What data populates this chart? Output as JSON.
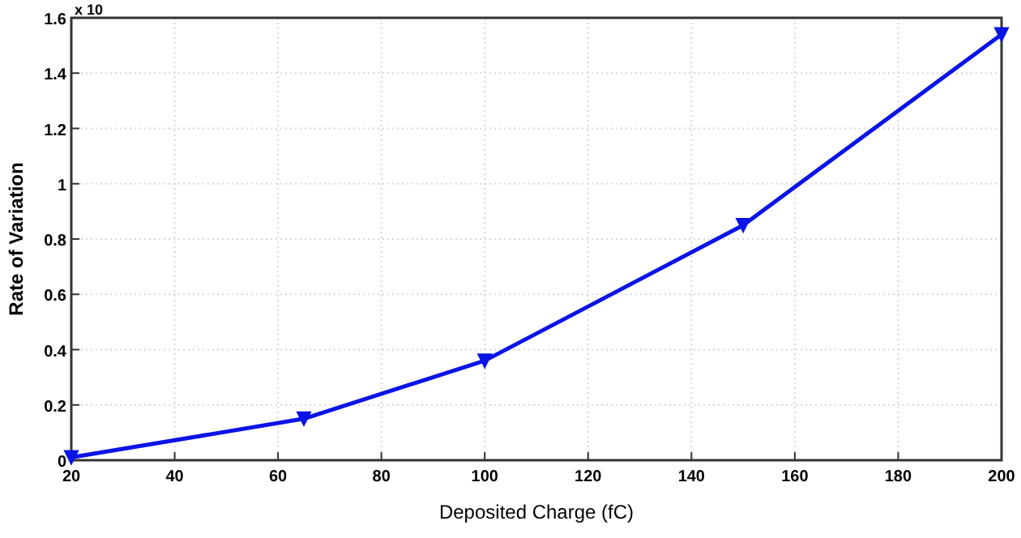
{
  "chart_data": {
    "type": "line",
    "xlabel": "Deposited Charge (fC)",
    "ylabel": "Rate of Variation",
    "annotations": [
      "x 10"
    ],
    "x": [
      20,
      65,
      100,
      150,
      200
    ],
    "series": [
      {
        "color": "#0a14e6",
        "values": [
          0.01,
          0.15,
          0.36,
          0.85,
          1.54
        ]
      }
    ],
    "xlim": [
      20,
      200
    ],
    "xticks": [
      20,
      40,
      60,
      80,
      100,
      120,
      140,
      160,
      180,
      200
    ],
    "ylim": [
      0,
      1.6
    ],
    "yticks": [
      0,
      0.2,
      0.4,
      0.6,
      0.8,
      1,
      1.2,
      1.4,
      1.6
    ],
    "grid": true,
    "marker": "triangle",
    "line_style": "solid"
  }
}
